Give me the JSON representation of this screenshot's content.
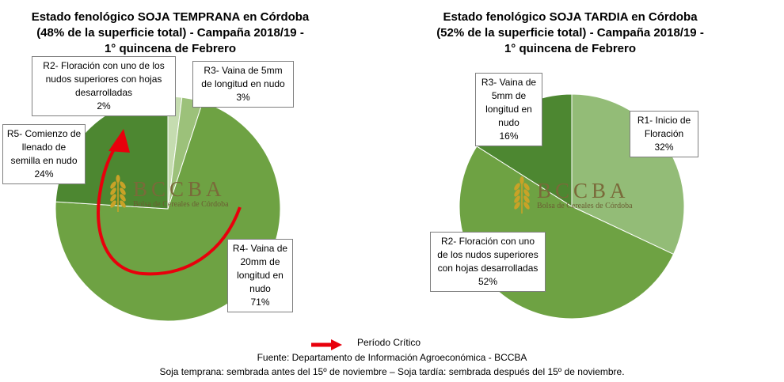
{
  "chart_data": [
    {
      "type": "pie",
      "title": [
        "Estado fenológico SOJA TEMPRANA en Córdoba",
        "(48% de la superficie total) - Campaña 2018/19 -",
        "1° quincena de Febrero"
      ],
      "slices": [
        {
          "lines": [
            "R2- Floración con uno de los",
            "nudos superiores con hojas",
            "desarrolladas",
            "2%"
          ],
          "value": 2,
          "color": "#c5dcb0"
        },
        {
          "lines": [
            "R3- Vaina de 5mm",
            "de longitud en nudo",
            "3%"
          ],
          "value": 3,
          "color": "#9cc17a"
        },
        {
          "lines": [
            "R4- Vaina de",
            "20mm de",
            "longitud en",
            "nudo",
            "71%"
          ],
          "value": 71,
          "color": "#6ea243"
        },
        {
          "lines": [
            "R5- Comienzo de",
            "llenado de",
            "semilla en nudo",
            "24%"
          ],
          "value": 24,
          "color": "#4d8731"
        }
      ],
      "annotation": {
        "color": "#e8000c"
      }
    },
    {
      "type": "pie",
      "title": [
        "Estado fenológico SOJA TARDIA en Córdoba",
        "(52% de la superficie total) - Campaña 2018/19 -",
        "1° quincena de Febrero"
      ],
      "slices": [
        {
          "lines": [
            "R1- Inicio de",
            "Floración",
            "32%"
          ],
          "value": 32,
          "color": "#93bc77"
        },
        {
          "lines": [
            "R2- Floración con uno",
            "de los nudos superiores",
            "con hojas desarrolladas",
            "52%"
          ],
          "value": 52,
          "color": "#6ea243"
        },
        {
          "lines": [
            "R3- Vaina de",
            "5mm de",
            "longitud en",
            "nudo",
            "16%"
          ],
          "value": 16,
          "color": "#4d8731"
        }
      ]
    }
  ],
  "logo": {
    "name": "BCCBA",
    "subtitle": "Bolsa de Cereales de Córdoba",
    "color": "#c9a227"
  },
  "legend": {
    "label": "Período Crítico",
    "color": "#e8000c"
  },
  "footer": {
    "source": "Fuente: Departamento de Información Agroeconómica - BCCBA",
    "note": "Soja temprana: sembrada antes del 15º de noviembre – Soja tardía: sembrada después del 15º de noviembre."
  }
}
